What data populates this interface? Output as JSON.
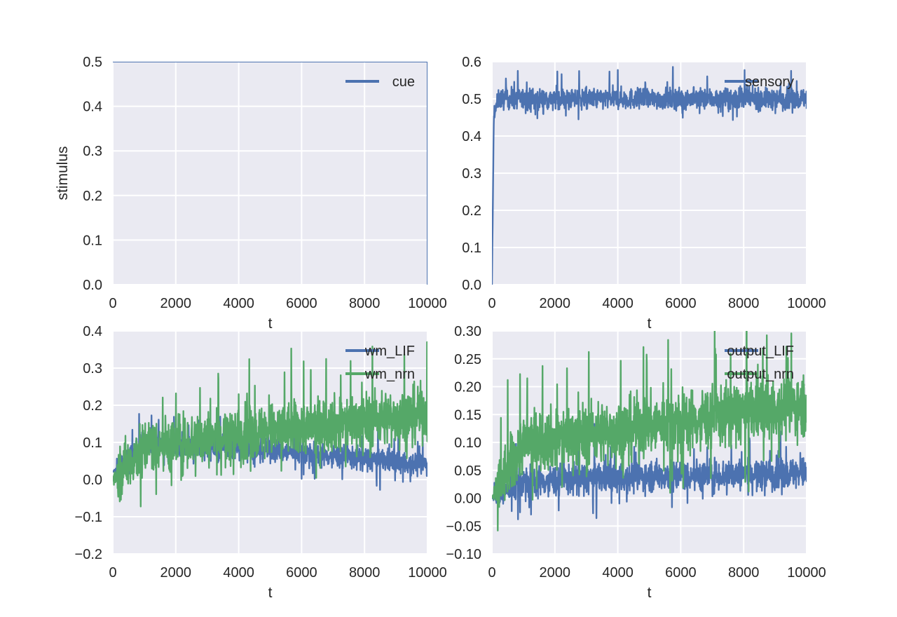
{
  "chart_data": [
    {
      "type": "line",
      "xlabel": "t",
      "ylabel": "stimulus",
      "xlim": [
        0,
        10000
      ],
      "ylim": [
        0.0,
        0.5
      ],
      "xticks": [
        "0",
        "2000",
        "4000",
        "6000",
        "8000",
        "10000"
      ],
      "yticks": [
        "0.0",
        "0.1",
        "0.2",
        "0.3",
        "0.4",
        "0.5"
      ],
      "grid": true,
      "legend_position": "top-right",
      "series": [
        {
          "name": "cue",
          "color": "#4c72b0",
          "x": [
            0,
            10000,
            10000
          ],
          "y": [
            0.5,
            0.5,
            0.0
          ]
        }
      ]
    },
    {
      "type": "line",
      "xlabel": "t",
      "ylabel": "",
      "xlim": [
        0,
        10000
      ],
      "ylim": [
        0.0,
        0.6
      ],
      "xticks": [
        "0",
        "2000",
        "4000",
        "6000",
        "8000",
        "10000"
      ],
      "yticks": [
        "0.0",
        "0.1",
        "0.2",
        "0.3",
        "0.4",
        "0.5",
        "0.6"
      ],
      "grid": true,
      "legend_position": "top-right",
      "series": [
        {
          "name": "sensory",
          "color": "#4c72b0",
          "x": [
            0,
            60,
            200,
            10000
          ],
          "mean": [
            0.0,
            0.45,
            0.5,
            0.5
          ],
          "spread": 0.045
        }
      ]
    },
    {
      "type": "line",
      "xlabel": "t",
      "ylabel": "",
      "xlim": [
        0,
        10000
      ],
      "ylim": [
        -0.2,
        0.4
      ],
      "xticks": [
        "0",
        "2000",
        "4000",
        "6000",
        "8000",
        "10000"
      ],
      "yticks": [
        "−0.2",
        "−0.1",
        "0.0",
        "0.1",
        "0.2",
        "0.3",
        "0.4"
      ],
      "grid": true,
      "legend_position": "top-right",
      "series": [
        {
          "name": "wm_LIF",
          "color": "#4c72b0",
          "x": [
            0,
            1000,
            5000,
            10000
          ],
          "mean": [
            0.02,
            0.1,
            0.08,
            0.04
          ],
          "spread": 0.05
        },
        {
          "name": "wm_nrn",
          "color": "#55a868",
          "x": [
            0,
            1000,
            5000,
            10000
          ],
          "mean": [
            0.0,
            0.09,
            0.13,
            0.18
          ],
          "spread": 0.12
        }
      ]
    },
    {
      "type": "line",
      "xlabel": "t",
      "ylabel": "",
      "xlim": [
        0,
        10000
      ],
      "ylim": [
        -0.1,
        0.3
      ],
      "xticks": [
        "0",
        "2000",
        "4000",
        "6000",
        "8000",
        "10000"
      ],
      "yticks": [
        "−0.10",
        "−0.05",
        "0.00",
        "0.05",
        "0.10",
        "0.15",
        "0.20",
        "0.25",
        "0.30"
      ],
      "grid": true,
      "legend_position": "top-right",
      "series": [
        {
          "name": "output_LIF",
          "color": "#4c72b0",
          "x": [
            0,
            1000,
            5000,
            10000
          ],
          "mean": [
            0.0,
            0.03,
            0.04,
            0.045
          ],
          "spread": 0.045
        },
        {
          "name": "output_nrn",
          "color": "#55a868",
          "x": [
            0,
            1000,
            5000,
            10000
          ],
          "mean": [
            0.0,
            0.1,
            0.13,
            0.17
          ],
          "spread": 0.09
        }
      ]
    }
  ]
}
